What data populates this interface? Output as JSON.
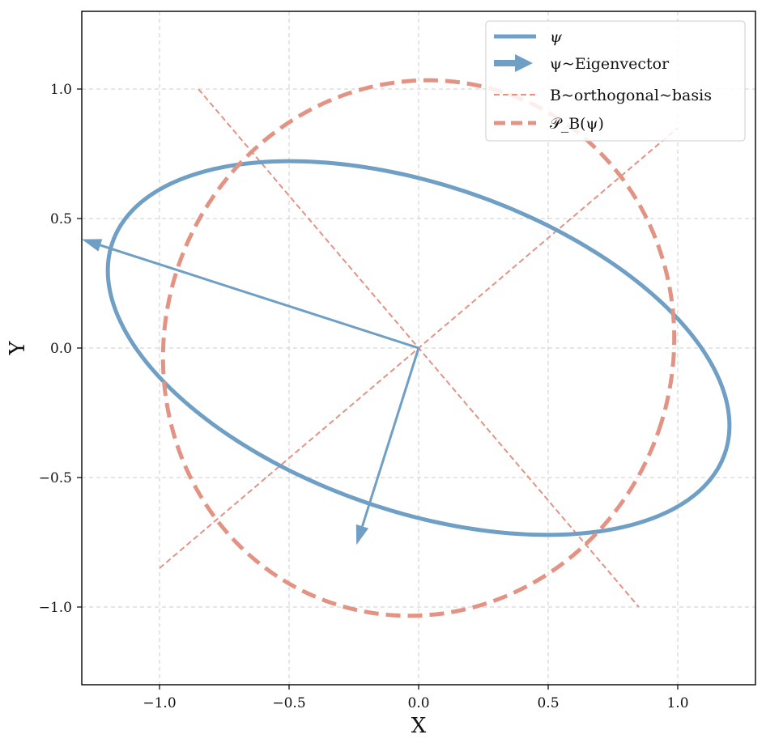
{
  "chart_data": {
    "type": "line",
    "title": "",
    "xlabel": "X",
    "ylabel": "Y",
    "xlim": [
      -1.3,
      1.3
    ],
    "ylim": [
      -1.3,
      1.3
    ],
    "xticks": [
      -1.0,
      -0.5,
      0.0,
      0.5,
      1.0
    ],
    "yticks": [
      -1.0,
      -0.5,
      0.0,
      0.5,
      1.0
    ],
    "xtick_labels": [
      "−1.0",
      "−0.5",
      "0.0",
      "0.5",
      "1.0"
    ],
    "ytick_labels": [
      "−1.0",
      "−0.5",
      "0.0",
      "0.5",
      "1.0"
    ],
    "grid": true,
    "legend_position": "top-right",
    "colors": {
      "psi": "#6f9fc4",
      "basis": "#e39384",
      "grid": "#cccccc"
    },
    "series": [
      {
        "name": "ψ",
        "kind": "ellipse",
        "center": [
          0,
          0
        ],
        "semi_axes": [
          1.25,
          0.63
        ],
        "rotation_deg": -19
      },
      {
        "name": "𝒫_B(ψ)",
        "kind": "ellipse",
        "center": [
          0,
          0
        ],
        "semi_axes": [
          0.98,
          1.04
        ],
        "rotation_deg": -19,
        "style": "dashed"
      }
    ],
    "eigenvectors": {
      "name": "ψ~Eigenvector",
      "vectors": [
        [
          -1.3,
          0.42
        ],
        [
          -0.24,
          -0.76
        ]
      ]
    },
    "basis_lines": {
      "name": "B~orthogonal~basis",
      "lines": [
        [
          [
            -1.0,
            -0.85
          ],
          [
            1.0,
            0.85
          ]
        ],
        [
          [
            -0.85,
            1.0
          ],
          [
            0.85,
            -1.0
          ]
        ]
      ]
    }
  },
  "legend": {
    "psi": "ψ",
    "eigen": "ψ~Eigenvector",
    "basis": "B~orthogonal~basis",
    "proj": "𝒫_B(ψ)"
  }
}
